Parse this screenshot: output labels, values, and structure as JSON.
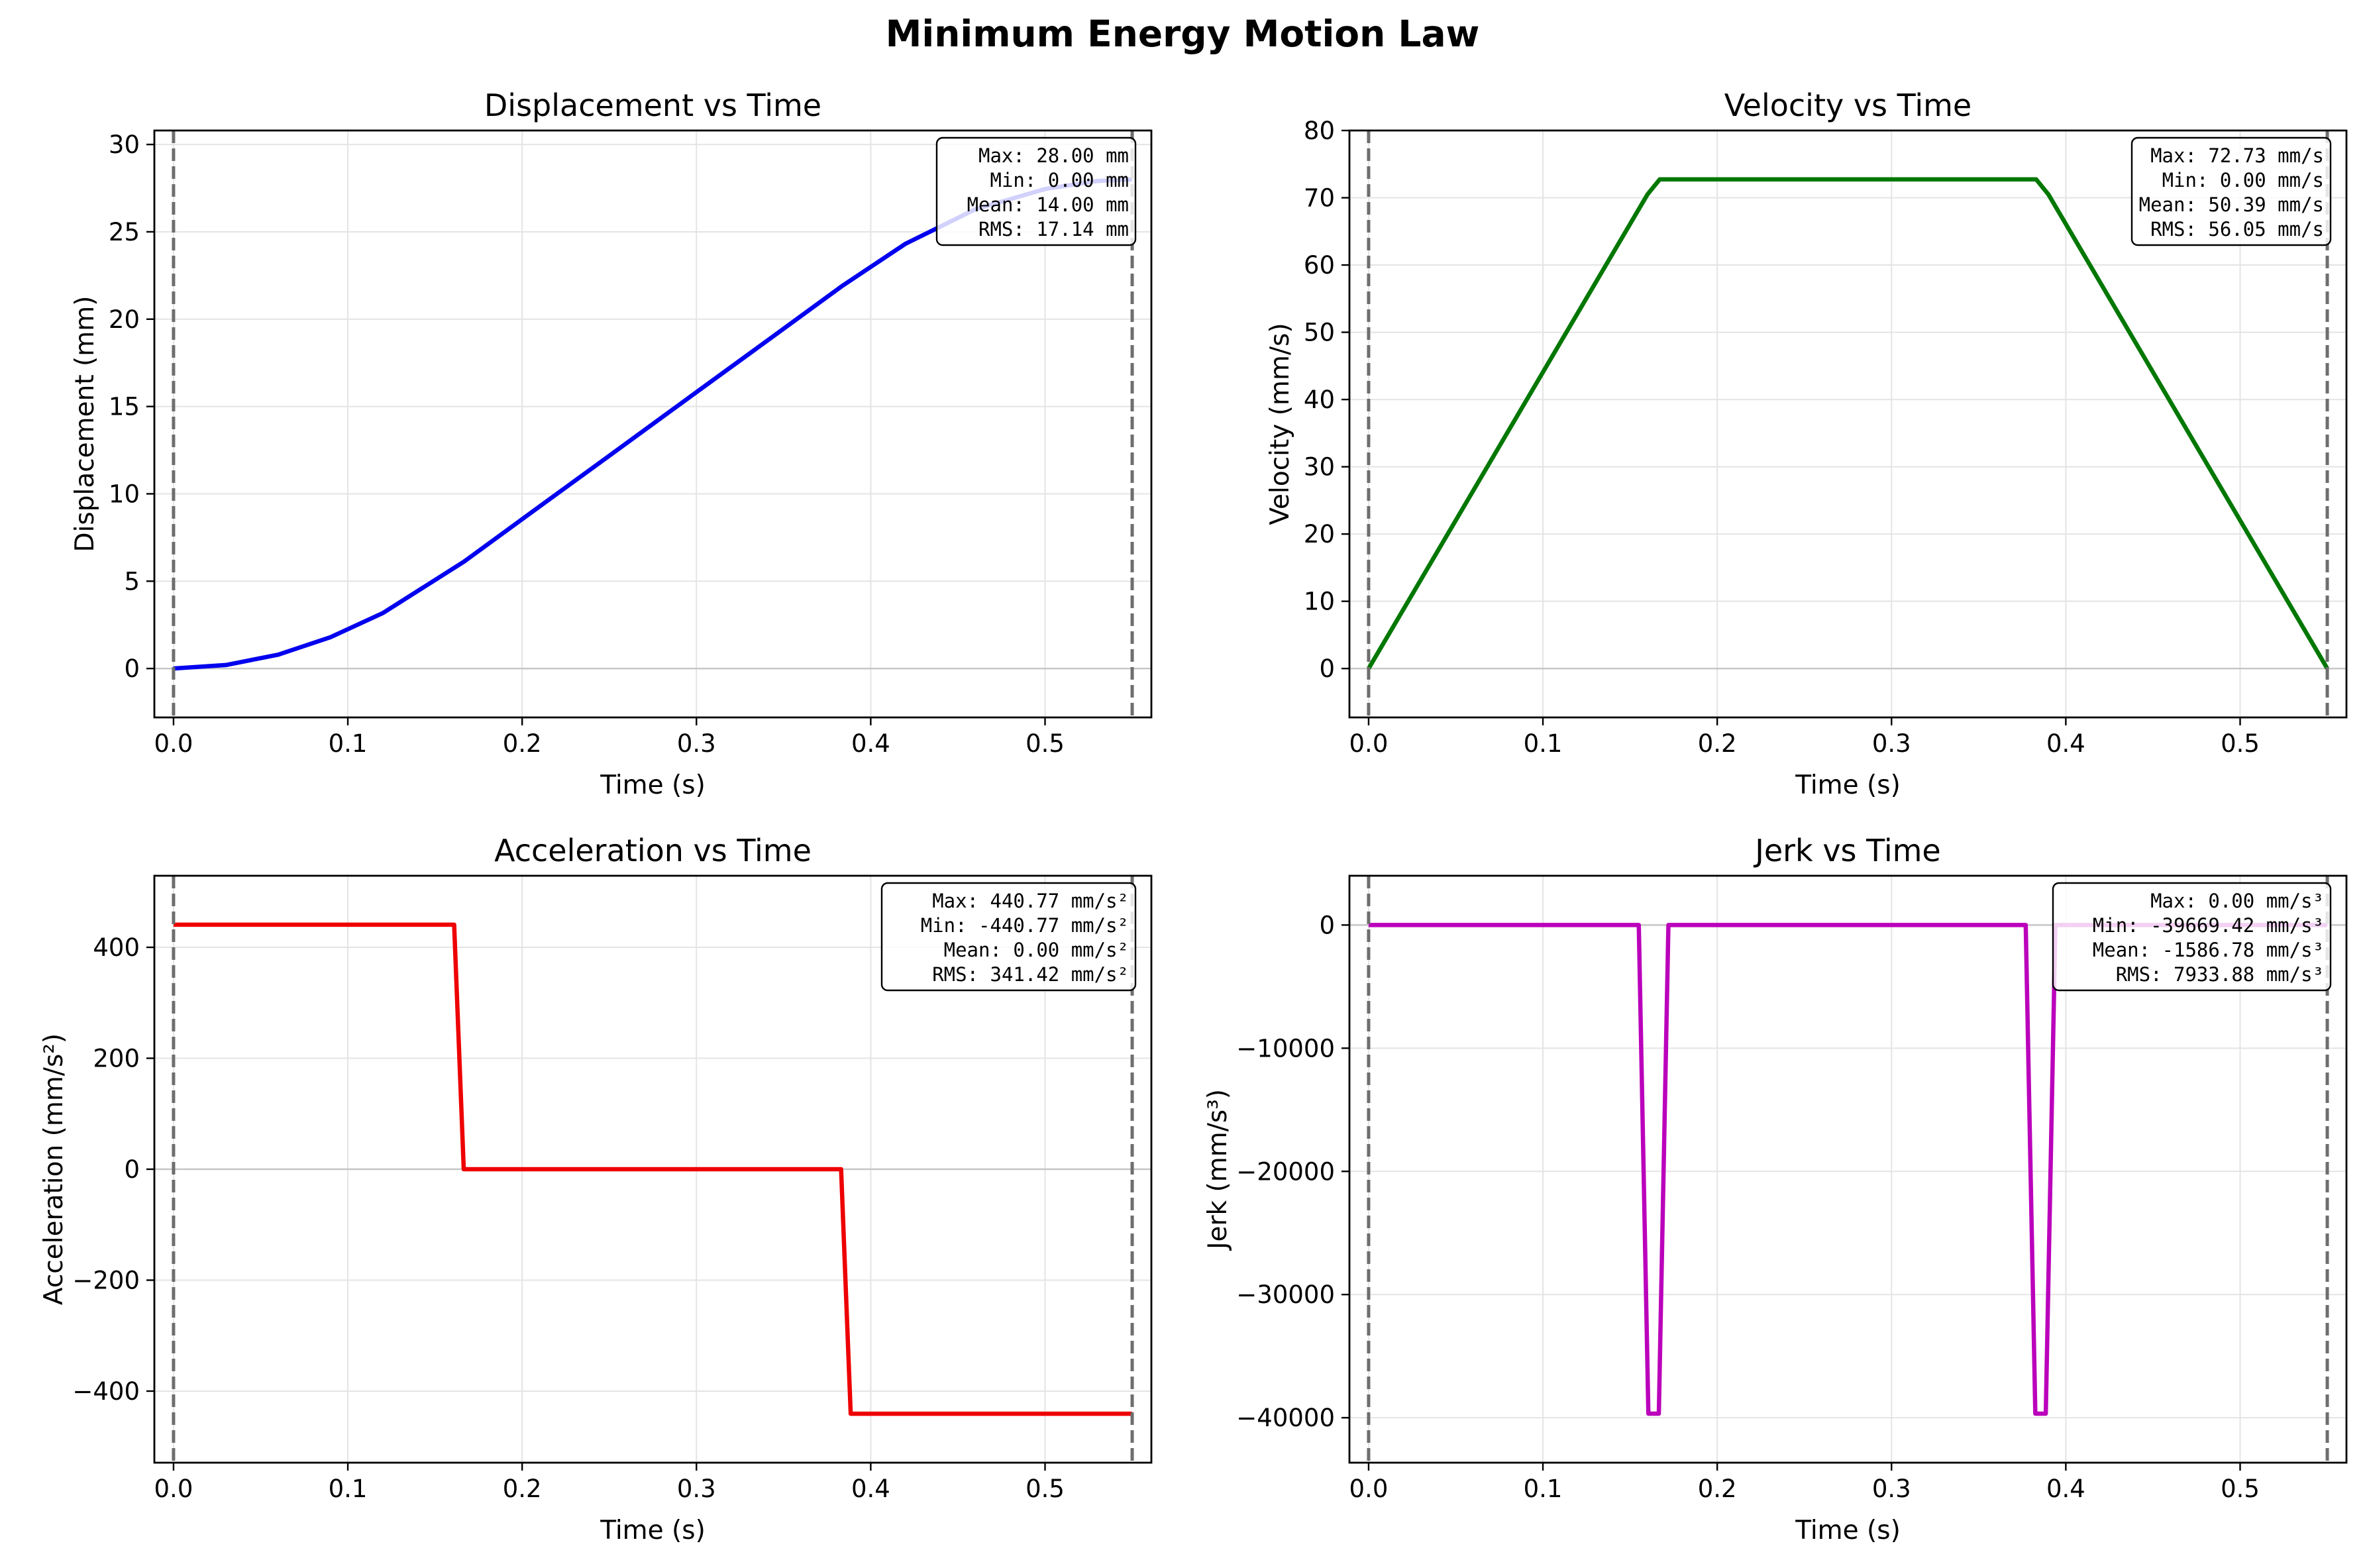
{
  "figure": {
    "title": "Minimum Energy Motion Law"
  },
  "chart_data": [
    {
      "type": "line",
      "title": "Displacement vs Time",
      "xlabel": "Time (s)",
      "ylabel": "Displacement (mm)",
      "xlim": [
        -0.011,
        0.561
      ],
      "ylim": [
        -2.8,
        30.8
      ],
      "xticks": [
        0.0,
        0.1,
        0.2,
        0.3,
        0.4,
        0.5
      ],
      "xtick_labels": [
        "0.0",
        "0.1",
        "0.2",
        "0.3",
        "0.4",
        "0.5"
      ],
      "yticks": [
        0,
        5,
        10,
        15,
        20,
        25,
        30
      ],
      "ytick_labels": [
        "0",
        "5",
        "10",
        "15",
        "20",
        "25",
        "30"
      ],
      "grid": true,
      "vlines": [
        0.0,
        0.55
      ],
      "hline": 0,
      "series": [
        {
          "color": "#0000ee",
          "x": [
            0,
            0.03,
            0.06,
            0.09,
            0.12,
            0.1667,
            0.2,
            0.25,
            0.3,
            0.35,
            0.3833,
            0.42,
            0.46,
            0.5,
            0.53,
            0.55
          ],
          "y": [
            0,
            0.2,
            0.79,
            1.79,
            3.17,
            6.12,
            8.55,
            12.18,
            15.82,
            19.45,
            21.88,
            24.32,
            26.29,
            27.45,
            27.91,
            28.0
          ]
        }
      ],
      "stats": [
        "Max: 28.00 mm",
        "Min: 0.00 mm",
        "Mean: 14.00 mm",
        "RMS: 17.14 mm"
      ]
    },
    {
      "type": "line",
      "title": "Velocity vs Time",
      "xlabel": "Time (s)",
      "ylabel": "Velocity (mm/s)",
      "xlim": [
        -0.011,
        0.561
      ],
      "ylim": [
        -7.27,
        80
      ],
      "xticks": [
        0.0,
        0.1,
        0.2,
        0.3,
        0.4,
        0.5
      ],
      "xtick_labels": [
        "0.0",
        "0.1",
        "0.2",
        "0.3",
        "0.4",
        "0.5"
      ],
      "yticks": [
        0,
        10,
        20,
        30,
        40,
        50,
        60,
        70,
        80
      ],
      "ytick_labels": [
        "0",
        "10",
        "20",
        "30",
        "40",
        "50",
        "60",
        "70",
        "80"
      ],
      "grid": true,
      "vlines": [
        0.0,
        0.55
      ],
      "hline": 0,
      "series": [
        {
          "color": "#007700",
          "x": [
            0,
            0.16,
            0.167,
            0.383,
            0.39,
            0.55
          ],
          "y": [
            0,
            70.5,
            72.73,
            72.73,
            70.5,
            0
          ]
        }
      ],
      "stats": [
        "Max: 72.73 mm/s",
        "Min: 0.00 mm/s",
        "Mean: 50.39 mm/s",
        "RMS: 56.05 mm/s"
      ]
    },
    {
      "type": "line",
      "title": "Acceleration vs Time",
      "xlabel": "Time (s)",
      "ylabel": "Acceleration (mm/s²)",
      "xlim": [
        -0.011,
        0.561
      ],
      "ylim": [
        -529,
        529
      ],
      "xticks": [
        0.0,
        0.1,
        0.2,
        0.3,
        0.4,
        0.5
      ],
      "xtick_labels": [
        "0.0",
        "0.1",
        "0.2",
        "0.3",
        "0.4",
        "0.5"
      ],
      "yticks": [
        -400,
        -200,
        0,
        200,
        400
      ],
      "ytick_labels": [
        "−400",
        "−200",
        "0",
        "200",
        "400"
      ],
      "grid": true,
      "vlines": [
        0.0,
        0.55
      ],
      "hline": 0,
      "series": [
        {
          "color": "#ee0000",
          "x": [
            0,
            0.161,
            0.1665,
            0.383,
            0.3885,
            0.55
          ],
          "y": [
            440.77,
            440.77,
            0,
            0,
            -440.77,
            -440.77
          ]
        }
      ],
      "stats": [
        "Max: 440.77 mm/s²",
        "Min: -440.77 mm/s²",
        "Mean: 0.00 mm/s²",
        "RMS: 341.42 mm/s²"
      ]
    },
    {
      "type": "line",
      "title": "Jerk vs Time",
      "xlabel": "Time (s)",
      "ylabel": "Jerk (mm/s³)",
      "xlim": [
        -0.011,
        0.561
      ],
      "ylim": [
        -43650,
        4000
      ],
      "xticks": [
        0.0,
        0.1,
        0.2,
        0.3,
        0.4,
        0.5
      ],
      "xtick_labels": [
        "0.0",
        "0.1",
        "0.2",
        "0.3",
        "0.4",
        "0.5"
      ],
      "yticks": [
        -40000,
        -30000,
        -20000,
        -10000,
        0
      ],
      "ytick_labels": [
        "−40000",
        "−30000",
        "−20000",
        "−10000",
        "0"
      ],
      "grid": true,
      "vlines": [
        0.0,
        0.55
      ],
      "hline": 0,
      "series": [
        {
          "color": "#bb00bb",
          "x": [
            0,
            0.155,
            0.1605,
            0.1665,
            0.172,
            0.377,
            0.3825,
            0.3885,
            0.394,
            0.55
          ],
          "y": [
            0,
            0,
            -39669.42,
            -39669.42,
            0,
            0,
            -39669.42,
            -39669.42,
            0,
            0
          ]
        }
      ],
      "stats": [
        "Max: 0.00 mm/s³",
        "Min: -39669.42 mm/s³",
        "Mean: -1586.78 mm/s³",
        "RMS: 7933.88 mm/s³"
      ]
    }
  ]
}
